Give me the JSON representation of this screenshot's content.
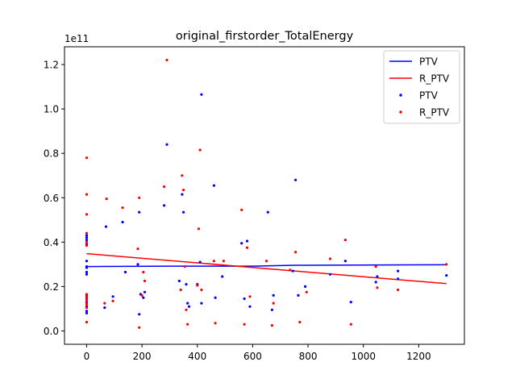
{
  "chart_data": {
    "type": "scatter",
    "title": "original_firstorder_TotalEnergy",
    "xlabel": "",
    "ylabel": "",
    "y_offset_label": "1e11",
    "xlim": [
      -80,
      1365
    ],
    "ylim": [
      -0.06,
      1.28
    ],
    "x_ticks": [
      0,
      200,
      400,
      600,
      800,
      1000,
      1200
    ],
    "y_ticks": [
      0.0,
      0.2,
      0.4,
      0.6,
      0.8,
      1.0,
      1.2
    ],
    "x_tick_labels": [
      "0",
      "200",
      "400",
      "600",
      "800",
      "1000",
      "1200"
    ],
    "y_tick_labels": [
      "0.0",
      "0.2",
      "0.4",
      "0.6",
      "0.8",
      "1.0",
      "1.2"
    ],
    "grid": false,
    "legend_position": "top-right",
    "legend": [
      "PTV",
      "R_PTV",
      "PTV",
      "R_PTV"
    ],
    "colors": {
      "PTV": "#0000ff",
      "R_PTV": "#ff0000"
    },
    "fit_lines": [
      {
        "name": "PTV",
        "color": "#0000ff",
        "points": [
          [
            0,
            0.29
          ],
          [
            300,
            0.292
          ],
          [
            600,
            0.292
          ],
          [
            750,
            0.296
          ],
          [
            1300,
            0.298
          ]
        ]
      },
      {
        "name": "R_PTV",
        "color": "#ff0000",
        "points": [
          [
            0,
            0.348
          ],
          [
            1300,
            0.213
          ]
        ]
      }
    ],
    "series": [
      {
        "name": "PTV",
        "color": "#0000ff",
        "points": [
          [
            0,
            0.44
          ],
          [
            0,
            0.43
          ],
          [
            0,
            0.42
          ],
          [
            0,
            0.41
          ],
          [
            0,
            0.39
          ],
          [
            0,
            0.315
          ],
          [
            0,
            0.29
          ],
          [
            0,
            0.285
          ],
          [
            0,
            0.265
          ],
          [
            0,
            0.255
          ],
          [
            0,
            0.16
          ],
          [
            0,
            0.15
          ],
          [
            0,
            0.13
          ],
          [
            0,
            0.11
          ],
          [
            0,
            0.09
          ],
          [
            0,
            0.08
          ],
          [
            65,
            0.105
          ],
          [
            70,
            0.47
          ],
          [
            95,
            0.155
          ],
          [
            130,
            0.49
          ],
          [
            140,
            0.265
          ],
          [
            185,
            0.3
          ],
          [
            190,
            0.535
          ],
          [
            190,
            0.075
          ],
          [
            195,
            0.165
          ],
          [
            205,
            0.15
          ],
          [
            210,
            0.175
          ],
          [
            280,
            0.565
          ],
          [
            290,
            0.84
          ],
          [
            335,
            0.225
          ],
          [
            345,
            0.615
          ],
          [
            350,
            0.535
          ],
          [
            360,
            0.21
          ],
          [
            365,
            0.125
          ],
          [
            370,
            0.11
          ],
          [
            400,
            0.21
          ],
          [
            410,
            0.31
          ],
          [
            415,
            1.065
          ],
          [
            415,
            0.125
          ],
          [
            460,
            0.655
          ],
          [
            465,
            0.15
          ],
          [
            490,
            0.245
          ],
          [
            560,
            0.395
          ],
          [
            570,
            0.145
          ],
          [
            580,
            0.405
          ],
          [
            590,
            0.11
          ],
          [
            655,
            0.535
          ],
          [
            670,
            0.095
          ],
          [
            675,
            0.16
          ],
          [
            745,
            0.27
          ],
          [
            755,
            0.68
          ],
          [
            765,
            0.16
          ],
          [
            790,
            0.2
          ],
          [
            880,
            0.255
          ],
          [
            935,
            0.315
          ],
          [
            955,
            0.13
          ],
          [
            1045,
            0.22
          ],
          [
            1050,
            0.245
          ],
          [
            1125,
            0.27
          ],
          [
            1125,
            0.235
          ],
          [
            1300,
            0.25
          ]
        ]
      },
      {
        "name": "R_PTV",
        "color": "#ff0000",
        "points": [
          [
            0,
            0.78
          ],
          [
            0,
            0.615
          ],
          [
            0,
            0.525
          ],
          [
            0,
            0.44
          ],
          [
            0,
            0.4
          ],
          [
            0,
            0.385
          ],
          [
            0,
            0.165
          ],
          [
            0,
            0.155
          ],
          [
            0,
            0.145
          ],
          [
            0,
            0.14
          ],
          [
            0,
            0.125
          ],
          [
            0,
            0.12
          ],
          [
            0,
            0.105
          ],
          [
            0,
            0.04
          ],
          [
            65,
            0.125
          ],
          [
            72,
            0.595
          ],
          [
            95,
            0.135
          ],
          [
            130,
            0.555
          ],
          [
            185,
            0.37
          ],
          [
            190,
            0.6
          ],
          [
            190,
            0.015
          ],
          [
            200,
            0.16
          ],
          [
            205,
            0.265
          ],
          [
            210,
            0.225
          ],
          [
            280,
            0.65
          ],
          [
            290,
            1.22
          ],
          [
            340,
            0.185
          ],
          [
            345,
            0.7
          ],
          [
            350,
            0.635
          ],
          [
            355,
            0.29
          ],
          [
            360,
            0.095
          ],
          [
            365,
            0.03
          ],
          [
            400,
            0.205
          ],
          [
            405,
            0.46
          ],
          [
            410,
            0.815
          ],
          [
            415,
            0.185
          ],
          [
            460,
            0.315
          ],
          [
            465,
            0.035
          ],
          [
            495,
            0.315
          ],
          [
            560,
            0.545
          ],
          [
            570,
            0.03
          ],
          [
            580,
            0.375
          ],
          [
            590,
            0.155
          ],
          [
            650,
            0.315
          ],
          [
            670,
            0.025
          ],
          [
            675,
            0.125
          ],
          [
            735,
            0.275
          ],
          [
            755,
            0.355
          ],
          [
            770,
            0.04
          ],
          [
            795,
            0.175
          ],
          [
            880,
            0.325
          ],
          [
            935,
            0.41
          ],
          [
            955,
            0.03
          ],
          [
            1045,
            0.29
          ],
          [
            1050,
            0.195
          ],
          [
            1125,
            0.185
          ],
          [
            1300,
            0.3
          ]
        ]
      }
    ]
  }
}
